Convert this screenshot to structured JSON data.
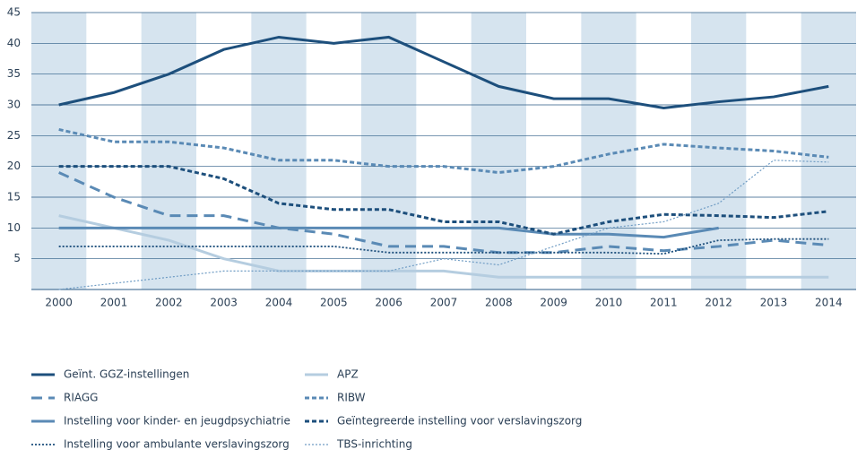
{
  "chart_data": {
    "type": "line",
    "categories": [
      "2000",
      "2001",
      "2002",
      "2003",
      "2004",
      "2005",
      "2006",
      "2007",
      "2008",
      "2009",
      "2010",
      "2011",
      "2012",
      "2013",
      "2014"
    ],
    "ylim": [
      0,
      45
    ],
    "yticks": [
      5,
      10,
      15,
      20,
      25,
      30,
      35,
      40,
      45
    ],
    "band_color": "#d6e4ef",
    "series": [
      {
        "name": "Geïnt. GGZ-instellingen",
        "color": "#1d4f7c",
        "style": "solid",
        "values": [
          30,
          32,
          35,
          39,
          41,
          40,
          41,
          37,
          33,
          31,
          31,
          29.5,
          30.5,
          31.3,
          33
        ]
      },
      {
        "name": "APZ",
        "color": "#b5cde0",
        "style": "solid",
        "values": [
          12,
          10,
          8,
          5,
          3,
          3,
          3,
          3,
          2,
          2,
          2,
          2,
          2,
          2,
          2
        ]
      },
      {
        "name": "RIAGG",
        "color": "#5a8ab5",
        "style": "long-dash",
        "values": [
          19,
          15,
          12,
          12,
          10,
          9,
          7,
          7,
          6,
          6,
          7,
          6.3,
          7,
          8,
          7.2
        ]
      },
      {
        "name": "RIBW",
        "color": "#5a8ab5",
        "style": "short-dash",
        "values": [
          26,
          24,
          24,
          23,
          21,
          21,
          20,
          20,
          19,
          20,
          22,
          23.6,
          23,
          22.5,
          21.5
        ]
      },
      {
        "name": "Instelling voor kinder- en jeugdpsychiatrie",
        "color": "#5a8ab5",
        "style": "solid",
        "values": [
          10,
          10,
          10,
          10,
          10,
          10,
          10,
          10,
          10,
          9,
          9,
          8.5,
          10,
          null,
          null
        ]
      },
      {
        "name": "Geïntegreerde instelling voor verslavingszorg",
        "color": "#1d4f7c",
        "style": "short-dash",
        "values": [
          20,
          20,
          20,
          18,
          14,
          13,
          13,
          11,
          11,
          9,
          11,
          12.2,
          12,
          11.7,
          12.7
        ]
      },
      {
        "name": "Instelling voor ambulante verslavingszorg",
        "color": "#1d4f7c",
        "style": "dotted",
        "values": [
          7,
          7,
          7,
          7,
          7,
          7,
          6,
          6,
          6,
          6,
          6,
          5.8,
          8,
          8.2,
          8.2
        ]
      },
      {
        "name": "TBS-inrichting",
        "color": "#6f9cc4",
        "style": "dotted-thin",
        "values": [
          0,
          1,
          2,
          3,
          3,
          3,
          3,
          5,
          4,
          7,
          10,
          11,
          14,
          21,
          20.7
        ]
      }
    ]
  }
}
